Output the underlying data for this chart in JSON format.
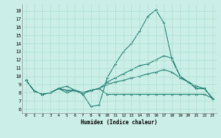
{
  "xlabel": "Humidex (Indice chaleur)",
  "ylabel": "",
  "bg_color": "#cceee8",
  "grid_color": "#aaddcc",
  "line_color": "#1a7a6e",
  "xlim": [
    -0.5,
    23.5
  ],
  "ylim": [
    5.5,
    18.8
  ],
  "xticks": [
    0,
    1,
    2,
    3,
    4,
    5,
    6,
    7,
    8,
    9,
    10,
    11,
    12,
    13,
    14,
    15,
    16,
    17,
    18,
    19,
    20,
    21,
    22,
    23
  ],
  "yticks": [
    6,
    7,
    8,
    9,
    10,
    11,
    12,
    13,
    14,
    15,
    16,
    17,
    18
  ],
  "line1_x": [
    0,
    1,
    2,
    3,
    4,
    5,
    6,
    7,
    8,
    9,
    10,
    11,
    12,
    13,
    14,
    15,
    16,
    17,
    18,
    19,
    20,
    21,
    22,
    23
  ],
  "line1_y": [
    9.5,
    8.2,
    7.8,
    8.0,
    8.5,
    8.8,
    8.3,
    7.8,
    6.3,
    6.5,
    9.8,
    11.5,
    13.0,
    14.0,
    15.5,
    17.3,
    18.1,
    16.5,
    12.0,
    10.0,
    9.3,
    8.5,
    8.5,
    7.3
  ],
  "line2_x": [
    0,
    1,
    2,
    3,
    4,
    5,
    6,
    7,
    8,
    9,
    10,
    11,
    12,
    13,
    14,
    15,
    16,
    17,
    18,
    19,
    20,
    21,
    22,
    23
  ],
  "line2_y": [
    9.5,
    8.2,
    7.8,
    8.0,
    8.5,
    8.3,
    8.3,
    8.0,
    8.3,
    8.5,
    9.3,
    9.8,
    10.3,
    10.8,
    11.3,
    11.5,
    12.0,
    12.5,
    12.2,
    10.0,
    9.3,
    8.5,
    8.5,
    7.3
  ],
  "line3_x": [
    0,
    1,
    2,
    3,
    4,
    5,
    6,
    7,
    8,
    9,
    10,
    11,
    12,
    13,
    14,
    15,
    16,
    17,
    18,
    19,
    20,
    21,
    22,
    23
  ],
  "line3_y": [
    9.5,
    8.2,
    7.8,
    8.0,
    8.5,
    8.3,
    8.3,
    8.0,
    8.3,
    8.5,
    9.0,
    9.3,
    9.5,
    9.8,
    10.0,
    10.3,
    10.5,
    10.8,
    10.5,
    9.8,
    9.3,
    8.8,
    8.5,
    7.3
  ],
  "line4_x": [
    0,
    1,
    2,
    3,
    4,
    5,
    6,
    7,
    8,
    9,
    10,
    11,
    12,
    13,
    14,
    15,
    16,
    17,
    18,
    19,
    20,
    21,
    22,
    23
  ],
  "line4_y": [
    9.5,
    8.2,
    7.8,
    8.0,
    8.5,
    8.0,
    8.3,
    7.8,
    8.3,
    8.5,
    7.8,
    7.8,
    7.8,
    7.8,
    7.8,
    7.8,
    7.8,
    7.8,
    7.8,
    7.8,
    7.8,
    7.8,
    7.8,
    7.3
  ]
}
